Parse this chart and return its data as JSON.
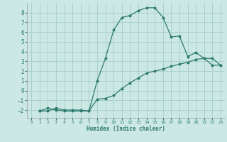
{
  "xlabel": "Humidex (Indice chaleur)",
  "ylabel": "",
  "background_color": "#cce8e4",
  "grid_color": "#aad0cc",
  "line_color": "#2d7a6e",
  "xlim": [
    -0.5,
    23.5
  ],
  "ylim": [
    -2.8,
    9.0
  ],
  "yticks": [
    -2,
    -1,
    0,
    1,
    2,
    3,
    4,
    5,
    6,
    7,
    8
  ],
  "xticks": [
    0,
    1,
    2,
    3,
    4,
    5,
    6,
    7,
    8,
    9,
    10,
    11,
    12,
    13,
    14,
    15,
    16,
    17,
    18,
    19,
    20,
    21,
    22,
    23
  ],
  "line1_x": [
    1,
    2,
    3,
    4,
    5,
    6,
    7,
    8,
    9,
    10,
    11,
    12,
    13,
    14,
    15,
    16,
    17,
    18,
    19,
    20,
    21,
    22,
    23
  ],
  "line1_y": [
    -2.1,
    -1.8,
    -2.0,
    -2.1,
    -2.1,
    -2.1,
    -2.1,
    1.0,
    3.3,
    6.2,
    7.5,
    7.7,
    8.2,
    8.5,
    8.5,
    7.5,
    5.5,
    5.6,
    3.5,
    3.9,
    3.3,
    2.6,
    2.6
  ],
  "line2_x": [
    1,
    2,
    3,
    4,
    5,
    6,
    7,
    8,
    9,
    10,
    11,
    12,
    13,
    14,
    15,
    16,
    17,
    18,
    19,
    20,
    21,
    22,
    23
  ],
  "line2_y": [
    -2.1,
    -2.1,
    -1.8,
    -2.0,
    -2.0,
    -2.0,
    -2.1,
    -0.9,
    -0.8,
    -0.5,
    0.2,
    0.8,
    1.3,
    1.8,
    2.0,
    2.2,
    2.5,
    2.7,
    2.9,
    3.2,
    3.3,
    3.3,
    2.6
  ]
}
